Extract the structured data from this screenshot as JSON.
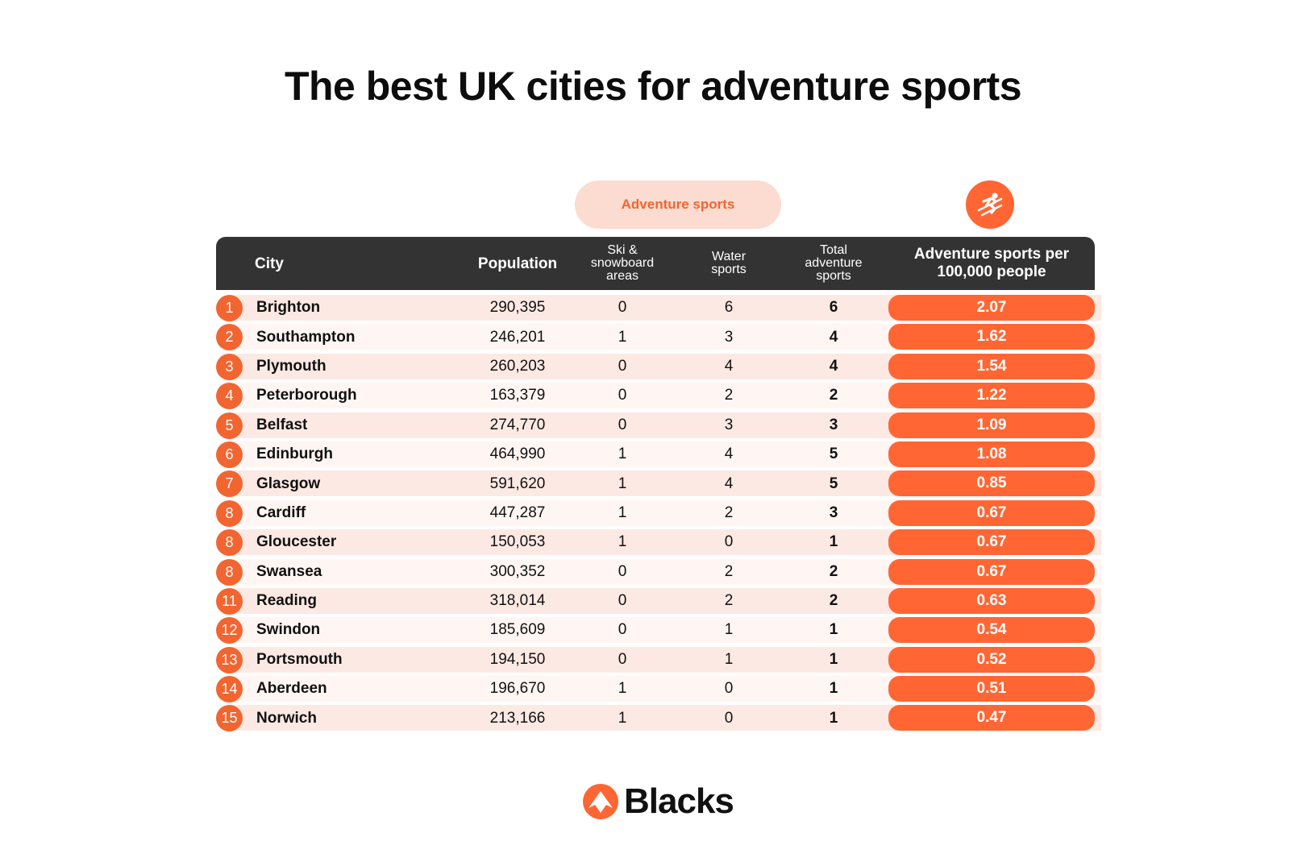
{
  "title": "The best UK cities for adventure sports",
  "group_label": "Adventure sports",
  "icons": {
    "badge": "skiing-person-icon",
    "logo": "blacks-mountain-logo-icon"
  },
  "colors": {
    "accent": "#ff6633",
    "rank": "#f26531",
    "pill": "#fcdcd0",
    "header": "#333333",
    "row_light": "#fff6f3",
    "row_dark": "#fde9e3"
  },
  "chart_data": {
    "type": "table",
    "columns": [
      "City",
      "Population",
      "Ski & snowboard areas",
      "Water sports",
      "Total adventure sports",
      "Adventure sports per 100,000 people"
    ],
    "columns_display": {
      "city": "City",
      "population": "Population",
      "ski_lines": [
        "Ski &",
        "snowboard",
        "areas"
      ],
      "water_lines": [
        "Water",
        "sports"
      ],
      "total_lines": [
        "Total",
        "adventure",
        "sports"
      ],
      "score_lines": [
        "Adventure sports per",
        "100,000 people"
      ]
    },
    "rows": [
      {
        "rank": "1",
        "city": "Brighton",
        "population": "290,395",
        "ski": "0",
        "water": "6",
        "total": "6",
        "score": "2.07"
      },
      {
        "rank": "2",
        "city": "Southampton",
        "population": "246,201",
        "ski": "1",
        "water": "3",
        "total": "4",
        "score": "1.62"
      },
      {
        "rank": "3",
        "city": "Plymouth",
        "population": "260,203",
        "ski": "0",
        "water": "4",
        "total": "4",
        "score": "1.54"
      },
      {
        "rank": "4",
        "city": "Peterborough",
        "population": "163,379",
        "ski": "0",
        "water": "2",
        "total": "2",
        "score": "1.22"
      },
      {
        "rank": "5",
        "city": "Belfast",
        "population": "274,770",
        "ski": "0",
        "water": "3",
        "total": "3",
        "score": "1.09"
      },
      {
        "rank": "6",
        "city": "Edinburgh",
        "population": "464,990",
        "ski": "1",
        "water": "4",
        "total": "5",
        "score": "1.08"
      },
      {
        "rank": "7",
        "city": "Glasgow",
        "population": "591,620",
        "ski": "1",
        "water": "4",
        "total": "5",
        "score": "0.85"
      },
      {
        "rank": "8",
        "city": "Cardiff",
        "population": "447,287",
        "ski": "1",
        "water": "2",
        "total": "3",
        "score": "0.67"
      },
      {
        "rank": "8",
        "city": "Gloucester",
        "population": "150,053",
        "ski": "1",
        "water": "0",
        "total": "1",
        "score": "0.67"
      },
      {
        "rank": "8",
        "city": "Swansea",
        "population": "300,352",
        "ski": "0",
        "water": "2",
        "total": "2",
        "score": "0.67"
      },
      {
        "rank": "11",
        "city": "Reading",
        "population": "318,014",
        "ski": "0",
        "water": "2",
        "total": "2",
        "score": "0.63"
      },
      {
        "rank": "12",
        "city": "Swindon",
        "population": "185,609",
        "ski": "0",
        "water": "1",
        "total": "1",
        "score": "0.54"
      },
      {
        "rank": "13",
        "city": "Portsmouth",
        "population": "194,150",
        "ski": "0",
        "water": "1",
        "total": "1",
        "score": "0.52"
      },
      {
        "rank": "14",
        "city": "Aberdeen",
        "population": "196,670",
        "ski": "1",
        "water": "0",
        "total": "1",
        "score": "0.51"
      },
      {
        "rank": "15",
        "city": "Norwich",
        "population": "213,166",
        "ski": "1",
        "water": "0",
        "total": "1",
        "score": "0.47"
      }
    ]
  },
  "footer": {
    "brand": "Blacks"
  }
}
